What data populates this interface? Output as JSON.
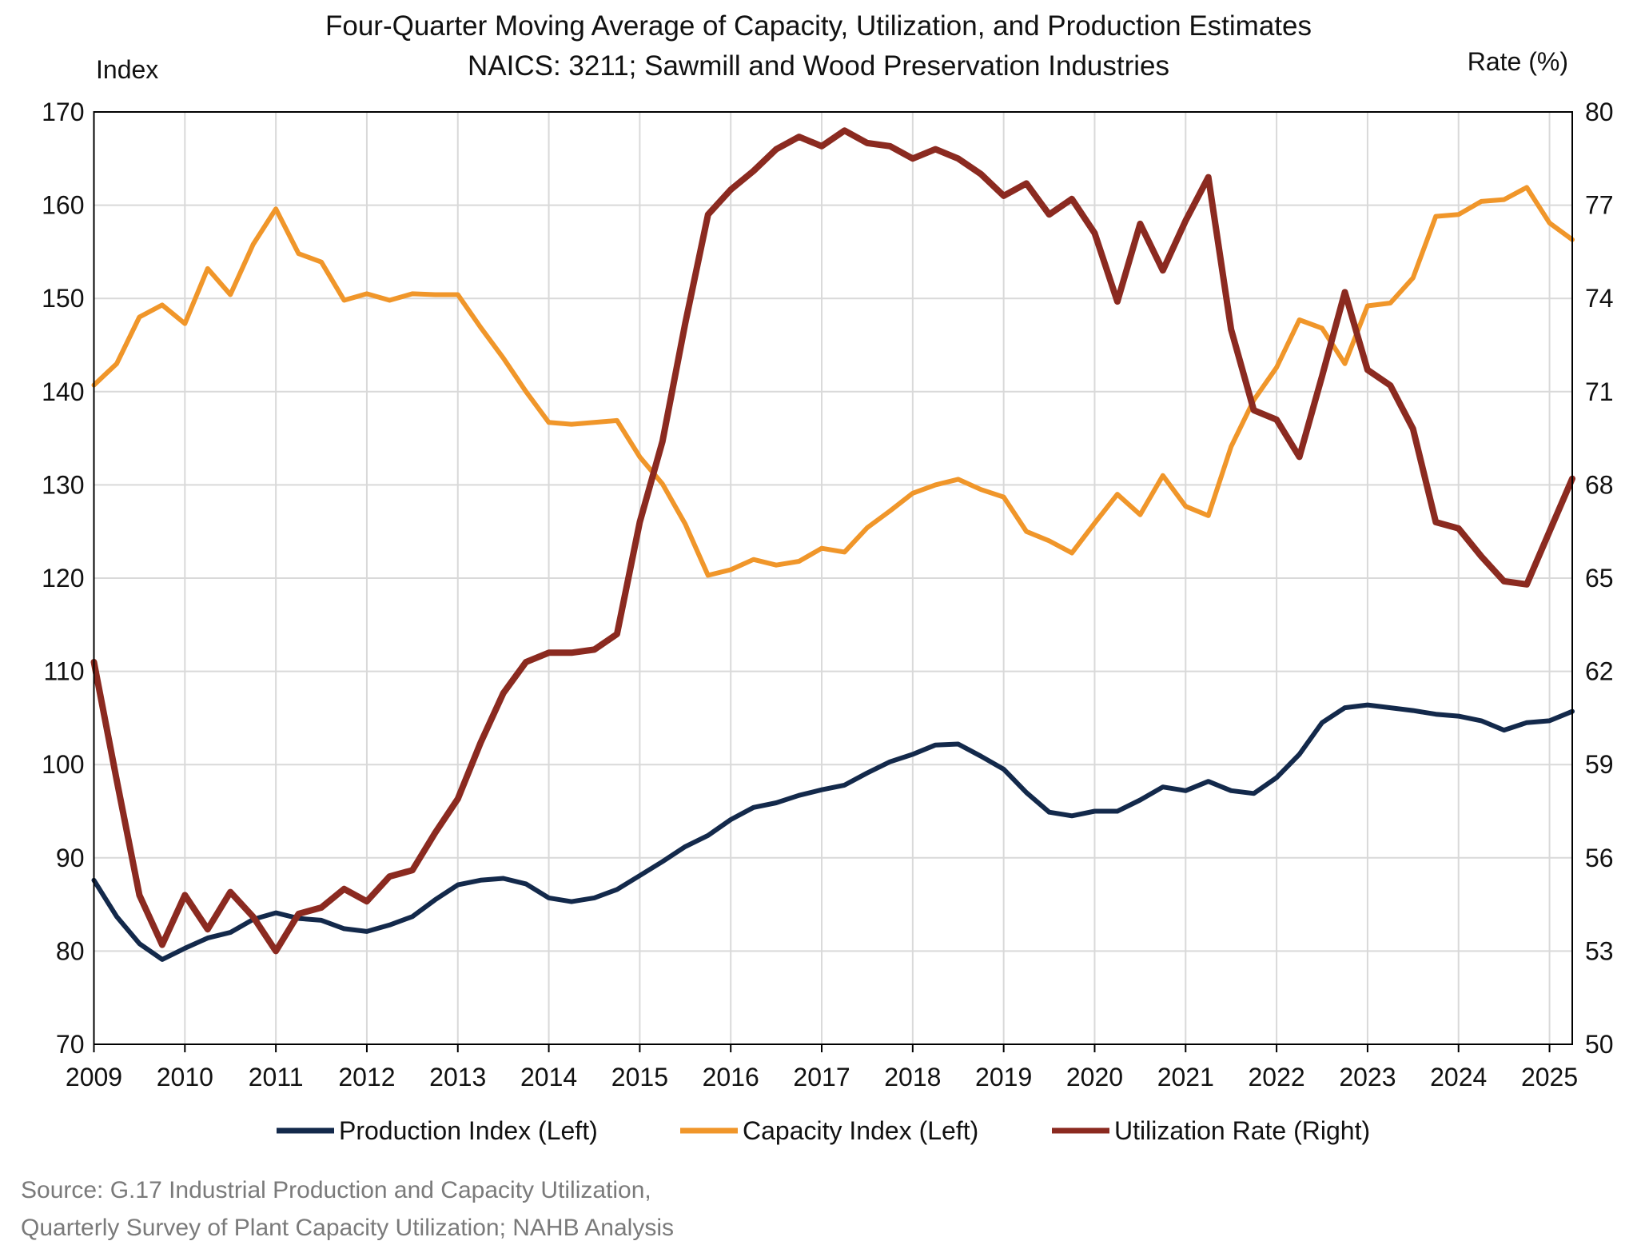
{
  "chart_data": {
    "type": "line",
    "title": "Four-Quarter Moving Average of Capacity, Utilization, and Production Estimates",
    "subtitle": "NAICS: 3211; Sawmill and Wood Preservation Industries",
    "ylabel_left": "Index",
    "ylabel_right": "Rate (%)",
    "ylim_left": [
      70,
      170
    ],
    "ylim_right": [
      50,
      80
    ],
    "yticks_left": [
      "170",
      "160",
      "150",
      "140",
      "130",
      "120",
      "110",
      "100",
      "90",
      "80",
      "70"
    ],
    "yticks_right": [
      "80",
      "77",
      "74",
      "71",
      "68",
      "65",
      "62",
      "59",
      "56",
      "53",
      "50"
    ],
    "xticks": [
      "2009",
      "2010",
      "2011",
      "2012",
      "2013",
      "2014",
      "2015",
      "2016",
      "2017",
      "2018",
      "2019",
      "2020",
      "2021",
      "2022",
      "2023",
      "2024",
      "2025"
    ],
    "x_start": "2009 Q1",
    "x_frequency": "quarterly",
    "grid": true,
    "legend_position": "bottom",
    "series": [
      {
        "name": "Production Index (Left)",
        "axis": "left",
        "color": "#13294b",
        "values": [
          87.6,
          83.7,
          80.8,
          79.1,
          80.3,
          81.4,
          82.0,
          83.4,
          84.1,
          83.5,
          83.3,
          82.4,
          82.1,
          82.8,
          83.7,
          85.5,
          87.1,
          87.6,
          87.8,
          87.2,
          85.7,
          85.3,
          85.7,
          86.6,
          88.1,
          89.6,
          91.2,
          92.4,
          94.1,
          95.4,
          95.9,
          96.7,
          97.3,
          97.8,
          99.1,
          100.3,
          101.1,
          102.1,
          102.2,
          100.9,
          99.5,
          97.0,
          94.9,
          94.5,
          95.0,
          95.0,
          96.2,
          97.6,
          97.2,
          98.2,
          97.2,
          96.9,
          98.6,
          101.1,
          104.5,
          106.1,
          106.4,
          106.1,
          105.8,
          105.4,
          105.2,
          104.7,
          103.7,
          104.5,
          104.7,
          105.7
        ]
      },
      {
        "name": "Capacity Index (Left)",
        "axis": "left",
        "color": "#f0962a",
        "values": [
          140.7,
          143.0,
          148.0,
          149.3,
          147.3,
          153.2,
          150.4,
          155.8,
          159.6,
          154.8,
          153.9,
          149.8,
          150.5,
          149.8,
          150.5,
          150.4,
          150.4,
          146.9,
          143.6,
          140.0,
          136.7,
          136.5,
          136.7,
          136.9,
          133.0,
          130.1,
          125.8,
          120.3,
          120.9,
          122.0,
          121.4,
          121.8,
          123.2,
          122.8,
          125.4,
          127.2,
          129.1,
          130.0,
          130.6,
          129.5,
          128.7,
          125.0,
          124.0,
          122.7,
          125.9,
          129.0,
          126.8,
          131.0,
          127.7,
          126.7,
          134.1,
          139.1,
          142.6,
          147.7,
          146.8,
          143.0,
          149.2,
          149.5,
          152.2,
          158.8,
          159.0,
          160.4,
          160.6,
          161.9,
          158.1,
          156.3
        ]
      },
      {
        "name": "Utilization Rate (Right)",
        "axis": "right",
        "color": "#8b2a20",
        "values": [
          62.3,
          58.5,
          54.8,
          53.2,
          54.8,
          53.7,
          54.9,
          54.1,
          53.0,
          54.2,
          54.4,
          55.0,
          54.6,
          55.4,
          55.6,
          56.8,
          57.9,
          59.7,
          61.3,
          62.3,
          62.6,
          62.6,
          62.7,
          63.2,
          66.8,
          69.4,
          73.2,
          76.7,
          77.5,
          78.1,
          78.8,
          79.2,
          78.9,
          79.4,
          79.0,
          78.9,
          78.5,
          78.8,
          78.5,
          78.0,
          77.3,
          77.7,
          76.7,
          77.2,
          76.1,
          73.9,
          76.4,
          74.9,
          76.5,
          77.9,
          73.0,
          70.4,
          70.1,
          68.9,
          71.5,
          74.2,
          71.7,
          71.2,
          69.8,
          66.8,
          66.6,
          65.7,
          64.9,
          64.8,
          66.5,
          68.2
        ]
      }
    ]
  },
  "source": {
    "line1": "Source: G.17 Industrial Production and Capacity Utilization,",
    "line2": "Quarterly Survey of Plant Capacity Utilization; NAHB Analysis"
  }
}
